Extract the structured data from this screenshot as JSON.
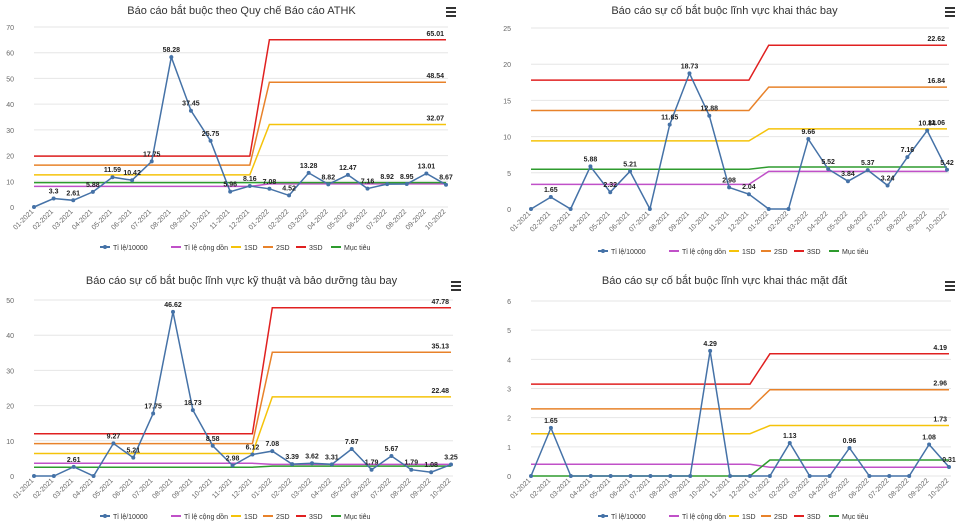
{
  "months": [
    "01-2021",
    "02-2021",
    "03-2021",
    "04-2021",
    "05-2021",
    "06-2021",
    "07-2021",
    "08-2021",
    "09-2021",
    "10-2021",
    "11-2021",
    "12-2021",
    "01-2022",
    "02-2022",
    "03-2022",
    "04-2022",
    "05-2022",
    "06-2022",
    "07-2022",
    "08-2022",
    "09-2022",
    "10-2022"
  ],
  "legend_labels": {
    "rate": "Tỉ lệ/10000",
    "cumulative": "Tỉ lệ cộng dồn",
    "sd1": "1SD",
    "sd2": "2SD",
    "sd3": "3SD",
    "target": "Mục tiêu"
  },
  "colors": {
    "rate": "#4572a7",
    "cumulative": "#c050c8",
    "sd1": "#f5c30a",
    "sd2": "#e8822a",
    "sd3": "#e02020",
    "target": "#2e9b2e",
    "grid": "#e6e6e6",
    "axis_text": "#666666"
  },
  "chart_data": [
    {
      "type": "line",
      "title": "Báo cáo bắt buộc theo Quy chế Báo cáo ATHK",
      "ylim": [
        0,
        70
      ],
      "yticks": [
        0,
        10,
        20,
        30,
        40,
        50,
        60,
        70
      ],
      "series": [
        {
          "key": "rate",
          "values": [
            0,
            3.3,
            2.61,
            5.88,
            11.59,
            10.42,
            17.75,
            58.28,
            37.45,
            25.75,
            5.96,
            8.16,
            7.08,
            4.52,
            13.28,
            8.82,
            12.47,
            7.16,
            8.92,
            8.95,
            13.01,
            8.67
          ]
        },
        {
          "key": "cumulative",
          "values": [
            8,
            8,
            8,
            8,
            8,
            8,
            8,
            8,
            8,
            8,
            8,
            8,
            9,
            9,
            9,
            9,
            9,
            9,
            9,
            9,
            9,
            9
          ]
        },
        {
          "key": "sd1",
          "values": [
            12.5,
            12.5,
            12.5,
            12.5,
            12.5,
            12.5,
            12.5,
            12.5,
            12.5,
            12.5,
            12.5,
            12.5,
            32.07,
            32.07,
            32.07,
            32.07,
            32.07,
            32.07,
            32.07,
            32.07,
            32.07,
            32.07
          ]
        },
        {
          "key": "sd2",
          "values": [
            16.3,
            16.3,
            16.3,
            16.3,
            16.3,
            16.3,
            16.3,
            16.3,
            16.3,
            16.3,
            16.3,
            16.3,
            48.54,
            48.54,
            48.54,
            48.54,
            48.54,
            48.54,
            48.54,
            48.54,
            48.54,
            48.54
          ]
        },
        {
          "key": "sd3",
          "values": [
            19.8,
            19.8,
            19.8,
            19.8,
            19.8,
            19.8,
            19.8,
            19.8,
            19.8,
            19.8,
            19.8,
            19.8,
            65.01,
            65.01,
            65.01,
            65.01,
            65.01,
            65.01,
            65.01,
            65.01,
            65.01,
            65.01
          ]
        },
        {
          "key": "target",
          "values": [
            9.5,
            9.5,
            9.5,
            9.5,
            9.5,
            9.5,
            9.5,
            9.5,
            9.5,
            9.5,
            9.5,
            9.5,
            9.5,
            9.5,
            9.5,
            9.5,
            9.5,
            9.5,
            9.5,
            9.5,
            9.5,
            9.5
          ]
        }
      ],
      "rate_labels": [
        "",
        "3.3",
        "2.61",
        "5.88",
        "11.59",
        "10.42",
        "17.75",
        "58.28",
        "37.45",
        "25.75",
        "5.96",
        "8.16",
        "7.08",
        "4.52",
        "13.28",
        "8.82",
        "12.47",
        "7.16",
        "8.92",
        "8.95",
        "13.01",
        "8.67"
      ],
      "end_labels": {
        "sd1": "32.07",
        "sd2": "48.54",
        "sd3": "65.01"
      }
    },
    {
      "type": "line",
      "title": "Báo cáo sự cố bắt buộc lĩnh vực khai thác bay",
      "ylim": [
        0,
        25
      ],
      "yticks": [
        0,
        5,
        10,
        15,
        20,
        25
      ],
      "series": [
        {
          "key": "rate",
          "values": [
            0,
            1.65,
            0,
            5.88,
            2.32,
            5.21,
            0,
            11.65,
            18.73,
            12.88,
            2.98,
            2.04,
            0,
            0,
            9.66,
            5.52,
            3.84,
            5.37,
            3.24,
            7.16,
            10.84,
            5.42
          ]
        },
        {
          "key": "cumulative",
          "values": [
            3.4,
            3.4,
            3.4,
            3.4,
            3.4,
            3.4,
            3.4,
            3.4,
            3.4,
            3.4,
            3.4,
            3.4,
            5.2,
            5.2,
            5.2,
            5.2,
            5.2,
            5.2,
            5.2,
            5.2,
            5.2,
            5.2
          ]
        },
        {
          "key": "sd1",
          "values": [
            9.4,
            9.4,
            9.4,
            9.4,
            9.4,
            9.4,
            9.4,
            9.4,
            9.4,
            9.4,
            9.4,
            9.4,
            11.06,
            11.06,
            11.06,
            11.06,
            11.06,
            11.06,
            11.06,
            11.06,
            11.06,
            11.06
          ]
        },
        {
          "key": "sd2",
          "values": [
            13.6,
            13.6,
            13.6,
            13.6,
            13.6,
            13.6,
            13.6,
            13.6,
            13.6,
            13.6,
            13.6,
            13.6,
            16.84,
            16.84,
            16.84,
            16.84,
            16.84,
            16.84,
            16.84,
            16.84,
            16.84,
            16.84
          ]
        },
        {
          "key": "sd3",
          "values": [
            17.8,
            17.8,
            17.8,
            17.8,
            17.8,
            17.8,
            17.8,
            17.8,
            17.8,
            17.8,
            17.8,
            17.8,
            22.62,
            22.62,
            22.62,
            22.62,
            22.62,
            22.62,
            22.62,
            22.62,
            22.62,
            22.62
          ]
        },
        {
          "key": "target",
          "values": [
            5.5,
            5.5,
            5.5,
            5.5,
            5.5,
            5.5,
            5.5,
            5.5,
            5.5,
            5.5,
            5.5,
            5.5,
            5.8,
            5.8,
            5.8,
            5.8,
            5.8,
            5.8,
            5.8,
            5.8,
            5.8,
            5.8
          ]
        }
      ],
      "rate_labels": [
        "",
        "1.65",
        "",
        "5.88",
        "2.32",
        "5.21",
        "",
        "11.65",
        "18.73",
        "12.88",
        "2.98",
        "2.04",
        "",
        "",
        "9.66",
        "5.52",
        "3.84",
        "5.37",
        "3.24",
        "7.16",
        "10.84",
        "5.42"
      ],
      "end_labels": {
        "sd1": "11.06",
        "sd2": "16.84",
        "sd3": "22.62"
      }
    },
    {
      "type": "line",
      "title": "Báo cáo sự cố bắt buộc lĩnh vực kỹ thuật và bảo dưỡng tàu bay",
      "ylim": [
        0,
        50
      ],
      "yticks": [
        0,
        10,
        20,
        30,
        40,
        50
      ],
      "series": [
        {
          "key": "rate",
          "values": [
            0,
            0,
            2.61,
            0,
            9.27,
            5.21,
            17.75,
            46.62,
            18.73,
            8.58,
            2.98,
            6.12,
            7.08,
            3.39,
            3.62,
            3.31,
            7.67,
            1.79,
            5.67,
            1.79,
            1.08,
            3.25
          ]
        },
        {
          "key": "cumulative",
          "values": [
            3.6,
            3.6,
            3.6,
            3.6,
            3.6,
            3.6,
            3.6,
            3.6,
            3.6,
            3.6,
            3.6,
            3.6,
            3.3,
            3.3,
            3.3,
            3.3,
            3.3,
            3.3,
            3.3,
            3.3,
            3.3,
            3.3
          ]
        },
        {
          "key": "sd1",
          "values": [
            6.4,
            6.4,
            6.4,
            6.4,
            6.4,
            6.4,
            6.4,
            6.4,
            6.4,
            6.4,
            6.4,
            6.4,
            22.48,
            22.48,
            22.48,
            22.48,
            22.48,
            22.48,
            22.48,
            22.48,
            22.48,
            22.48
          ]
        },
        {
          "key": "sd2",
          "values": [
            9.2,
            9.2,
            9.2,
            9.2,
            9.2,
            9.2,
            9.2,
            9.2,
            9.2,
            9.2,
            9.2,
            9.2,
            35.13,
            35.13,
            35.13,
            35.13,
            35.13,
            35.13,
            35.13,
            35.13,
            35.13,
            35.13
          ]
        },
        {
          "key": "sd3",
          "values": [
            12,
            12,
            12,
            12,
            12,
            12,
            12,
            12,
            12,
            12,
            12,
            12,
            47.78,
            47.78,
            47.78,
            47.78,
            47.78,
            47.78,
            47.78,
            47.78,
            47.78,
            47.78
          ]
        },
        {
          "key": "target",
          "values": [
            2.5,
            2.5,
            2.5,
            2.5,
            2.5,
            2.5,
            2.5,
            2.5,
            2.5,
            2.5,
            2.5,
            2.5,
            2.8,
            2.8,
            2.8,
            2.8,
            2.8,
            2.8,
            2.8,
            2.8,
            2.8,
            2.8
          ]
        }
      ],
      "rate_labels": [
        "",
        "",
        "2.61",
        "",
        "9.27",
        "5.21",
        "17.75",
        "46.62",
        "18.73",
        "8.58",
        "2.98",
        "6.12",
        "7.08",
        "3.39",
        "3.62",
        "3.31",
        "7.67",
        "1.79",
        "5.67",
        "1.79",
        "1.08",
        "3.25"
      ],
      "end_labels": {
        "sd1": "22.48",
        "sd2": "35.13",
        "sd3": "47.78"
      }
    },
    {
      "type": "line",
      "title": "Báo cáo sự cố bắt buộc lĩnh vực khai thác mặt đất",
      "ylim": [
        0,
        6
      ],
      "yticks": [
        0,
        1,
        2,
        3,
        4,
        5,
        6
      ],
      "series": [
        {
          "key": "rate",
          "values": [
            0,
            1.65,
            0,
            0,
            0,
            0,
            0,
            0,
            0,
            4.29,
            0,
            0,
            0,
            1.13,
            0,
            0,
            0.96,
            0,
            0,
            0,
            1.08,
            0.31
          ]
        },
        {
          "key": "cumulative",
          "values": [
            0.4,
            0.4,
            0.4,
            0.4,
            0.4,
            0.4,
            0.4,
            0.4,
            0.4,
            0.4,
            0.4,
            0.4,
            0.3,
            0.3,
            0.3,
            0.3,
            0.3,
            0.3,
            0.3,
            0.3,
            0.3,
            0.3
          ]
        },
        {
          "key": "sd1",
          "values": [
            1.45,
            1.45,
            1.45,
            1.45,
            1.45,
            1.45,
            1.45,
            1.45,
            1.45,
            1.45,
            1.45,
            1.45,
            1.73,
            1.73,
            1.73,
            1.73,
            1.73,
            1.73,
            1.73,
            1.73,
            1.73,
            1.73
          ]
        },
        {
          "key": "sd2",
          "values": [
            2.3,
            2.3,
            2.3,
            2.3,
            2.3,
            2.3,
            2.3,
            2.3,
            2.3,
            2.3,
            2.3,
            2.3,
            2.96,
            2.96,
            2.96,
            2.96,
            2.96,
            2.96,
            2.96,
            2.96,
            2.96,
            2.96
          ]
        },
        {
          "key": "sd3",
          "values": [
            3.15,
            3.15,
            3.15,
            3.15,
            3.15,
            3.15,
            3.15,
            3.15,
            3.15,
            3.15,
            3.15,
            3.15,
            4.19,
            4.19,
            4.19,
            4.19,
            4.19,
            4.19,
            4.19,
            4.19,
            4.19,
            4.19
          ]
        },
        {
          "key": "target",
          "values": [
            0,
            0,
            0,
            0,
            0,
            0,
            0,
            0,
            0,
            0,
            0,
            0,
            0.55,
            0.55,
            0.55,
            0.55,
            0.55,
            0.55,
            0.55,
            0.55,
            0.55,
            0.55
          ]
        }
      ],
      "rate_labels": [
        "",
        "1.65",
        "",
        "",
        "",
        "",
        "",
        "",
        "",
        "4.29",
        "",
        "",
        "",
        "1.13",
        "",
        "",
        "0.96",
        "",
        "",
        "",
        "1.08",
        "0.31"
      ],
      "end_labels": {
        "sd1": "1.73",
        "sd2": "2.96",
        "sd3": "4.19"
      }
    }
  ]
}
